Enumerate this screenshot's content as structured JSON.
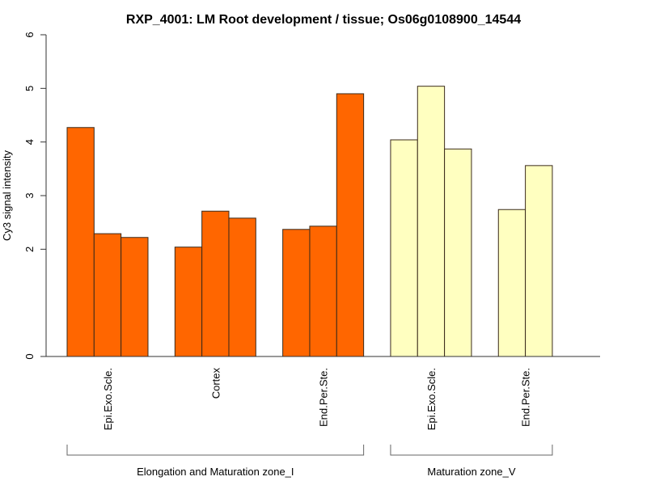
{
  "chart_data": {
    "type": "bar",
    "title": "RXP_4001: LM Root development / tissue; Os06g0108900_14544",
    "xlabel": "",
    "ylabel": "Cy3 signal intensity",
    "ylim": [
      0,
      6
    ],
    "yticks": [
      0,
      2,
      3,
      4,
      5,
      6
    ],
    "grid": false,
    "legend": "none",
    "colors": {
      "zone_I": "#ff6600",
      "zone_V": "#ffffc0"
    },
    "categories": [
      "Epi.Exo.Scle.",
      "Cortex",
      "End.Per.Ste.",
      "Epi.Exo.Scle.",
      "End.Per.Ste."
    ],
    "groups": [
      {
        "name": "Elongation and Maturation zone_I",
        "color": "#ff6600",
        "tissues": [
          {
            "label": "Epi.Exo.Scle.",
            "values": [
              4.27,
              2.29,
              2.22
            ]
          },
          {
            "label": "Cortex",
            "values": [
              2.04,
              2.71,
              2.58
            ]
          },
          {
            "label": "End.Per.Ste.",
            "values": [
              2.37,
              2.43,
              4.9
            ]
          }
        ]
      },
      {
        "name": "Maturation zone_V",
        "color": "#ffffc0",
        "tissues": [
          {
            "label": "Epi.Exo.Scle.",
            "values": [
              4.04,
              5.04,
              3.87
            ]
          },
          {
            "label": "End.Per.Ste.",
            "values": [
              2.74,
              3.56
            ]
          }
        ]
      }
    ]
  }
}
